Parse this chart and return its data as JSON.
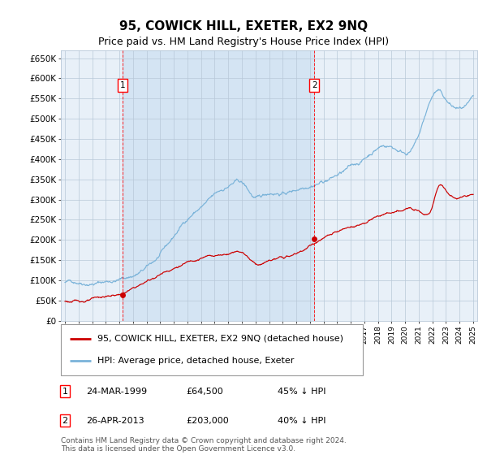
{
  "title": "95, COWICK HILL, EXETER, EX2 9NQ",
  "subtitle": "Price paid vs. HM Land Registry's House Price Index (HPI)",
  "legend_line1": "95, COWICK HILL, EXETER, EX2 9NQ (detached house)",
  "legend_line2": "HPI: Average price, detached house, Exeter",
  "footer_line1": "Contains HM Land Registry data © Crown copyright and database right 2024.",
  "footer_line2": "This data is licensed under the Open Government Licence v3.0.",
  "annotation1_label": "1",
  "annotation1_date": "24-MAR-1999",
  "annotation1_price": "£64,500",
  "annotation1_hpi": "45% ↓ HPI",
  "annotation2_label": "2",
  "annotation2_date": "26-APR-2013",
  "annotation2_price": "£203,000",
  "annotation2_hpi": "40% ↓ HPI",
  "sale1_year": 1999.23,
  "sale1_price": 64500,
  "sale2_year": 2013.32,
  "sale2_price": 203000,
  "hpi_color": "#7ab3d9",
  "price_color": "#cc0000",
  "plot_bg": "#e8f0f8",
  "grid_color": "#b8c8d8",
  "span_color": "#c8ddf0",
  "ylim": [
    0,
    670000
  ],
  "xlim_start": 1994.7,
  "xlim_end": 2025.3,
  "yticks": [
    0,
    50000,
    100000,
    150000,
    200000,
    250000,
    300000,
    350000,
    400000,
    450000,
    500000,
    550000,
    600000,
    650000
  ],
  "xticks": [
    1995,
    1996,
    1997,
    1998,
    1999,
    2000,
    2001,
    2002,
    2003,
    2004,
    2005,
    2006,
    2007,
    2008,
    2009,
    2010,
    2011,
    2012,
    2013,
    2014,
    2015,
    2016,
    2017,
    2018,
    2019,
    2020,
    2021,
    2022,
    2023,
    2024,
    2025
  ]
}
